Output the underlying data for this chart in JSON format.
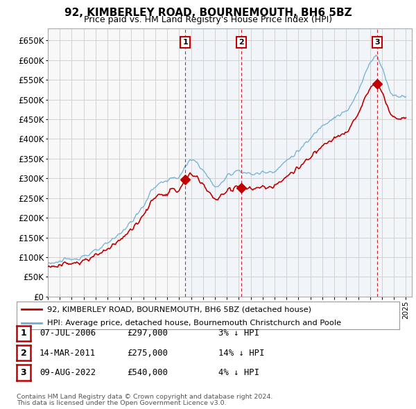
{
  "title": "92, KIMBERLEY ROAD, BOURNEMOUTH, BH6 5BZ",
  "subtitle": "Price paid vs. HM Land Registry's House Price Index (HPI)",
  "ylim": [
    0,
    680000
  ],
  "yticks": [
    0,
    50000,
    100000,
    150000,
    200000,
    250000,
    300000,
    350000,
    400000,
    450000,
    500000,
    550000,
    600000,
    650000
  ],
  "xlim_start": 1995,
  "xlim_end": 2025.5,
  "sale_points": [
    {
      "num": 1,
      "year": 2006.52,
      "price": 297000,
      "date": "07-JUL-2006",
      "pct": "3%",
      "dir": "↓"
    },
    {
      "num": 2,
      "year": 2011.19,
      "price": 275000,
      "date": "14-MAR-2011",
      "pct": "14%",
      "dir": "↓"
    },
    {
      "num": 3,
      "year": 2022.6,
      "price": 540000,
      "date": "09-AUG-2022",
      "pct": "4%",
      "dir": "↓"
    }
  ],
  "hpi_color": "#6baed6",
  "price_color": "#c00000",
  "shade_color": "#ddeeff",
  "background_color": "#ffffff",
  "plot_bg_color": "#f8f8f8",
  "grid_color": "#cccccc",
  "legend_label_price": "92, KIMBERLEY ROAD, BOURNEMOUTH, BH6 5BZ (detached house)",
  "legend_label_hpi": "HPI: Average price, detached house, Bournemouth Christchurch and Poole",
  "footer1": "Contains HM Land Registry data © Crown copyright and database right 2024.",
  "footer2": "This data is licensed under the Open Government Licence v3.0."
}
